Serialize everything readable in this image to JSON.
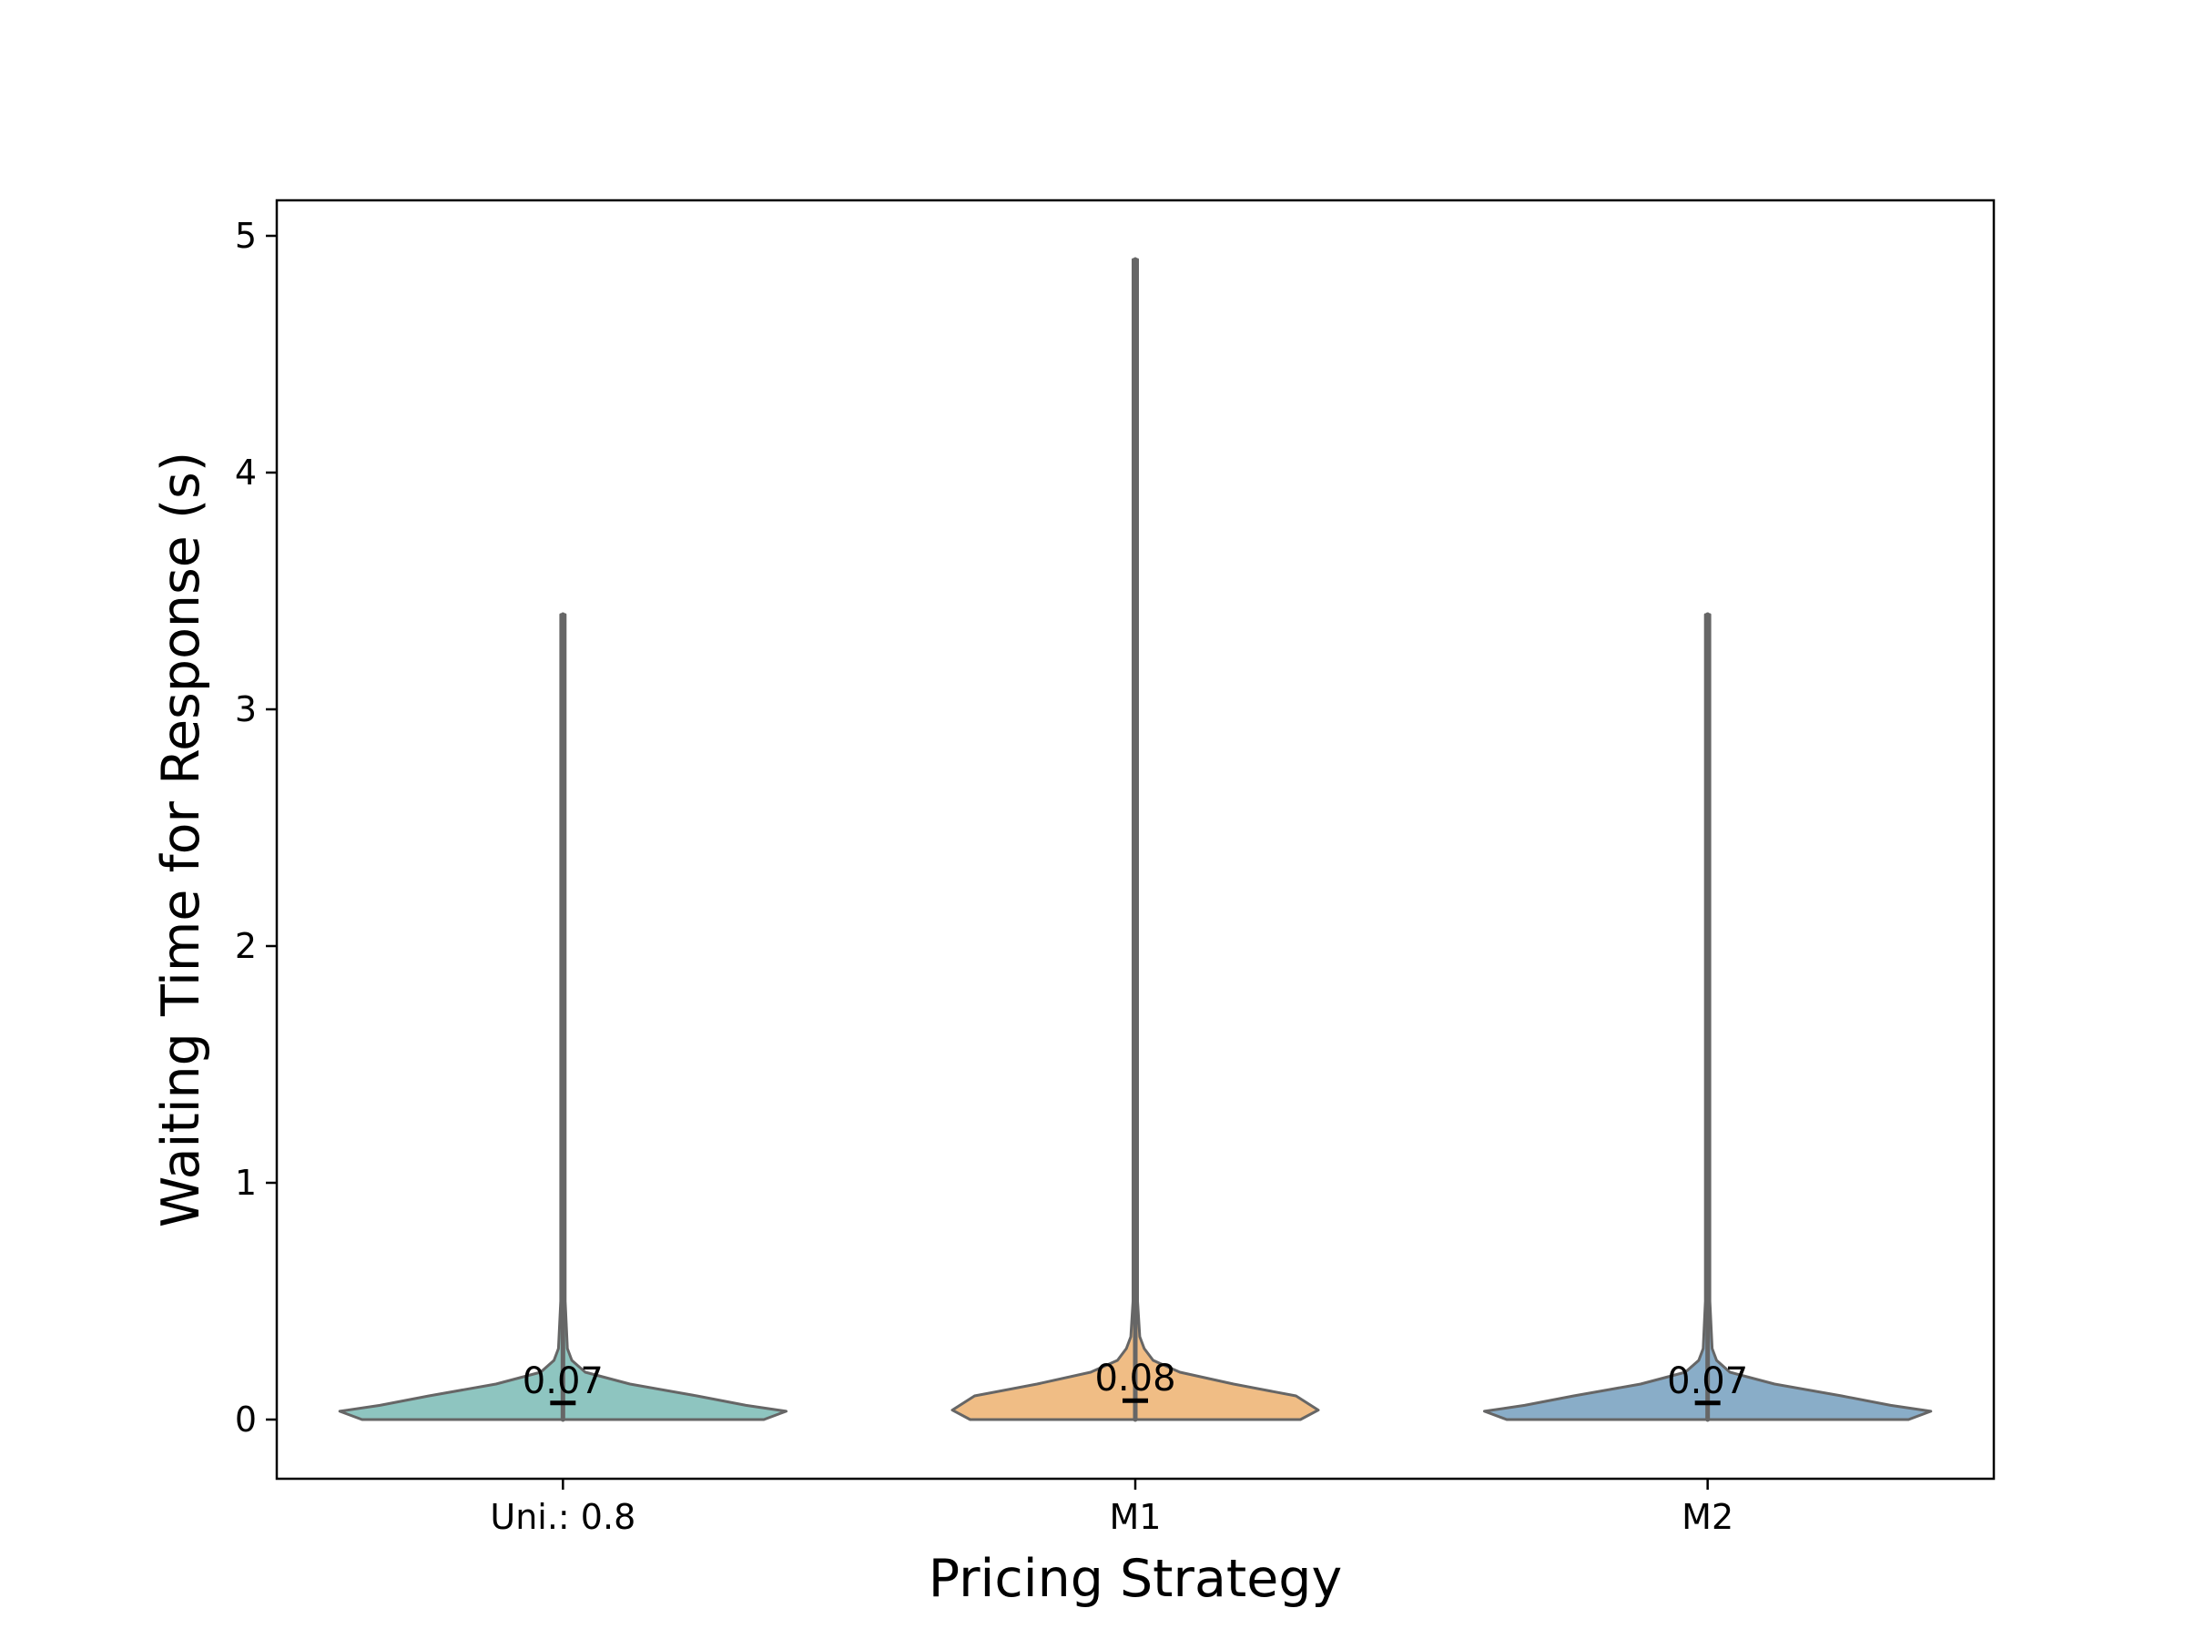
{
  "chart_data": {
    "type": "violin",
    "xlabel": "Pricing Strategy",
    "ylabel": "Waiting Time for Response (s)",
    "ylim": [
      -0.25,
      5.15
    ],
    "yticks": [
      0,
      1,
      2,
      3,
      4,
      5
    ],
    "categories": [
      "Uni.: 0.8",
      "M1",
      "M2"
    ],
    "series": [
      {
        "name": "Uni.: 0.8",
        "color": "#8ec5c0",
        "min": 0.0,
        "max": 3.4,
        "mean": 0.07,
        "mean_label": "0.07",
        "density": [
          [
            0.0,
            0.45
          ],
          [
            0.035,
            0.5
          ],
          [
            0.06,
            0.41
          ],
          [
            0.1,
            0.3
          ],
          [
            0.15,
            0.15
          ],
          [
            0.2,
            0.05
          ],
          [
            0.25,
            0.02
          ],
          [
            0.3,
            0.01
          ],
          [
            0.5,
            0.005
          ],
          [
            3.4,
            0.005
          ]
        ]
      },
      {
        "name": "M1",
        "color": "#f0bd85",
        "min": 0.0,
        "max": 4.9,
        "mean": 0.08,
        "mean_label": "0.08",
        "density": [
          [
            0.0,
            0.37
          ],
          [
            0.04,
            0.41
          ],
          [
            0.1,
            0.36
          ],
          [
            0.15,
            0.22
          ],
          [
            0.2,
            0.1
          ],
          [
            0.25,
            0.04
          ],
          [
            0.3,
            0.02
          ],
          [
            0.35,
            0.01
          ],
          [
            0.5,
            0.005
          ],
          [
            4.9,
            0.005
          ]
        ]
      },
      {
        "name": "M2",
        "color": "#89adc8",
        "min": 0.0,
        "max": 3.4,
        "mean": 0.07,
        "mean_label": "0.07",
        "density": [
          [
            0.0,
            0.45
          ],
          [
            0.035,
            0.5
          ],
          [
            0.06,
            0.41
          ],
          [
            0.1,
            0.3
          ],
          [
            0.15,
            0.15
          ],
          [
            0.2,
            0.05
          ],
          [
            0.25,
            0.02
          ],
          [
            0.3,
            0.01
          ],
          [
            0.5,
            0.005
          ],
          [
            3.4,
            0.005
          ]
        ]
      }
    ]
  }
}
